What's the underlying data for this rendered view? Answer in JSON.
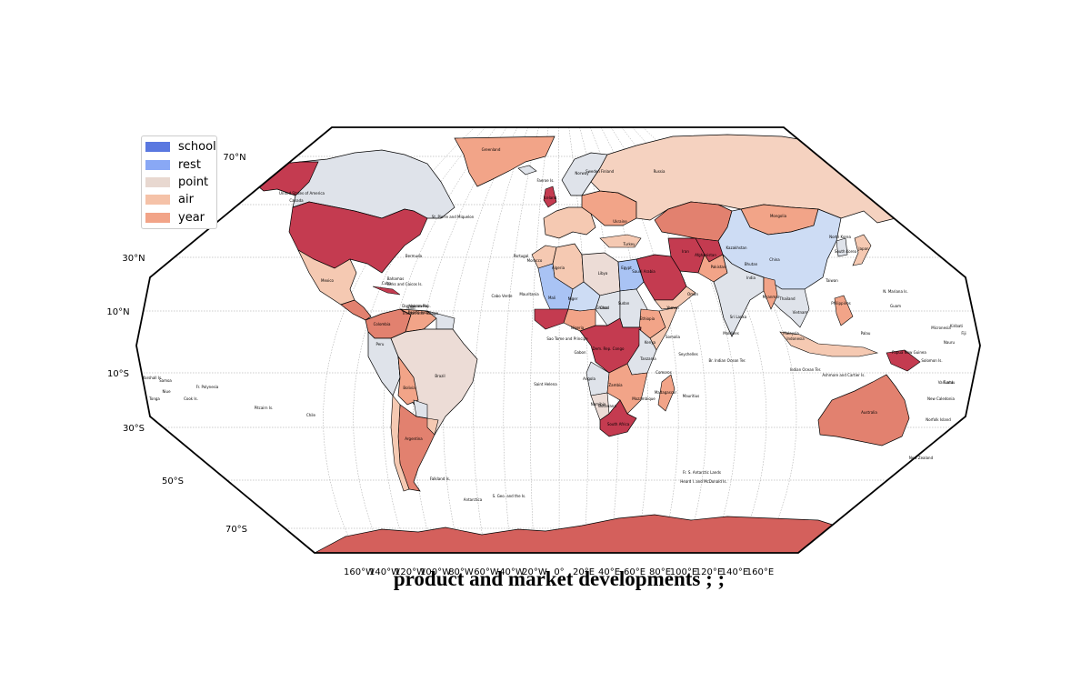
{
  "title": "product and market developments ; ;",
  "legend": [
    {
      "label": "school",
      "color": "#5a78e0"
    },
    {
      "label": "rest",
      "color": "#89a8f5"
    },
    {
      "label": "point",
      "color": "#e8d8d0"
    },
    {
      "label": "air",
      "color": "#f5c2a8"
    },
    {
      "label": "year",
      "color": "#f2a488"
    }
  ],
  "colors": {
    "ocean": "#ffffff",
    "antarctica": "#d4605c",
    "deep_red": "#c43b50",
    "coral": "#e2816f",
    "pale_grey": "#dfe3ea",
    "pale_blue": "#cddcf4",
    "peach": "#f5c9b2",
    "salmon": "#f2a488",
    "light_blue": "#a9c3f4"
  },
  "lat_labels": [
    "70°N",
    "50°N",
    "30°N",
    "10°N",
    "10°S",
    "30°S",
    "50°S",
    "70°S"
  ],
  "lon_labels": [
    "160°W",
    "140°W",
    "120°W",
    "100°W",
    "80°W",
    "60°W",
    "40°W",
    "20°W",
    "0°",
    "20°E",
    "40°E",
    "60°E",
    "80°E",
    "100°E",
    "120°E",
    "140°E",
    "160°E"
  ],
  "region_labels": [
    "Greenland",
    "United States of America",
    "Canada",
    "Mexico",
    "Brazil",
    "Argentina",
    "Chile",
    "Peru",
    "Bolivia",
    "Mongolia",
    "China",
    "India",
    "Kazakhstan",
    "Algeria",
    "Libya",
    "Egypt",
    "Sudan",
    "Chad",
    "Niger",
    "Mali",
    "Saudi Arabia",
    "Iran",
    "Afghanistan",
    "Ethiopia",
    "Dem. Rep. Congo",
    "Angola",
    "Namibia",
    "South Africa",
    "Tanzania",
    "Madagascar",
    "Australia",
    "Indonesia",
    "Philippines",
    "Japan",
    "Papua New Guinea",
    "New Zealand",
    "Antarctica",
    "Bermuda",
    "Cabo Verde",
    "Saint Helena",
    "Mauritius",
    "Seychelles",
    "Maldives",
    "Br. Indian Ocean Ter.",
    "Indian Ocean Ter.",
    "Fr. Polynesia",
    "Pitcairn Is.",
    "Cook Is.",
    "Niue",
    "Tonga",
    "Samoa",
    "Marshall Is.",
    "Kiribati",
    "Nauru",
    "Tuvalu",
    "Guam",
    "N. Mariana Is.",
    "Palau",
    "Micronesia",
    "Solomon Is.",
    "Vanuatu",
    "New Caledonia",
    "Norfolk Island",
    "Fiji",
    "Falkland Is.",
    "S. Geo. and the Is.",
    "Fr. S. Antarctic Lands",
    "Heard I. and McDonald Is.",
    "Ashmore and Cartier Is.",
    "Faeroe Is.",
    "Iceland",
    "Norway",
    "Sweden",
    "Finland",
    "Russia",
    "Ukraine",
    "Turkey",
    "Pakistan",
    "Yemen",
    "Oman",
    "Somalia",
    "Kenya",
    "Nigeria",
    "Ghana",
    "Gabon",
    "Mozambique",
    "Zambia",
    "Botswana",
    "Venezuela",
    "Colombia",
    "Cuba",
    "Bahamas",
    "Turks and Caicos Is.",
    "Dominican Rep.",
    "Haiti",
    "Puerto Rico",
    "Trinidad and Tobago",
    "Sao Tome and Principe",
    "Morocco",
    "Mauritania",
    "Portugal",
    "Thailand",
    "Vietnam",
    "Myanmar",
    "Bhutan",
    "Sri Lanka",
    "Malaysia",
    "Taiwan",
    "North Korea",
    "South Korea",
    "St. Pierre and Miquelon",
    "Comoros"
  ]
}
